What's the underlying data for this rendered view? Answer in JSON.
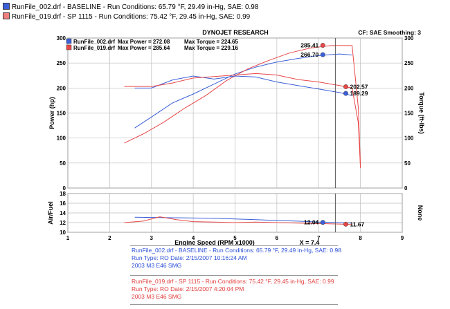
{
  "header": {
    "runs": [
      {
        "text": "RunFile_002.drf - BASELINE  -  Run Conditions: 65.79 °F, 29.49 in-Hg, SAE: 0.98",
        "color": "#3a5fd8"
      },
      {
        "text": "RunFile_019.drf - SP 1115  -  Run Conditions: 75.42 °F, 29.45 in-Hg, SAE: 0.99",
        "color": "#f08080"
      }
    ]
  },
  "chart_data": [
    {
      "type": "line",
      "title": "DYNOJET RESEARCH",
      "top_right_note": "CF: SAE  Smoothing: 3",
      "legend": [
        {
          "run": "RunFile_002.drf",
          "max_power_label": "Max Power =",
          "max_power": "272.08",
          "max_torque_label": "Max Torque =",
          "max_torque": "224.65",
          "color": "#3a5fd8"
        },
        {
          "run": "RunFile_019.drf",
          "max_power_label": "Max Power =",
          "max_power": "285.64",
          "max_torque_label": "Max Torque =",
          "max_torque": "229.16",
          "color": "#e84848"
        }
      ],
      "xlabel": "Engine Speed (RPM x1000)",
      "cursor_label": "X = 7.4",
      "xlim": [
        1,
        9
      ],
      "xticks": [
        "1",
        "2",
        "3",
        "4",
        "5",
        "6",
        "7",
        "8",
        "9"
      ],
      "ylabel_left": "Power (hp)",
      "ylabel_right": "Torque (ft-lbs)",
      "ylim": [
        0,
        300
      ],
      "yticks": [
        "0",
        "50",
        "100",
        "150",
        "200",
        "250",
        "300"
      ],
      "grid": true,
      "cursor_x": 7.4,
      "markers": [
        {
          "label": "285.41",
          "x": 7.1,
          "y": 285.41,
          "color": "#e84848"
        },
        {
          "label": "266.70",
          "x": 7.1,
          "y": 266.7,
          "color": "#3a5fd8"
        },
        {
          "label": "202.57",
          "x": 7.65,
          "y": 202.57,
          "color": "#e84848"
        },
        {
          "label": "189.29",
          "x": 7.65,
          "y": 189.29,
          "color": "#3a5fd8"
        }
      ],
      "series": [
        {
          "name": "RunFile_002.drf Power",
          "color": "#3a5fd8",
          "x": [
            2.6,
            3.0,
            3.5,
            4.0,
            4.5,
            5.0,
            5.5,
            6.0,
            6.5,
            7.0,
            7.5,
            7.8
          ],
          "y": [
            120,
            142,
            170,
            188,
            208,
            228,
            242,
            252,
            259,
            265,
            268,
            266
          ]
        },
        {
          "name": "RunFile_019.drf Power",
          "color": "#e84848",
          "x": [
            2.35,
            2.8,
            3.3,
            3.8,
            4.3,
            4.8,
            5.3,
            5.8,
            6.3,
            6.8,
            7.3,
            7.8,
            7.95,
            8.0
          ],
          "y": [
            90,
            108,
            132,
            160,
            185,
            215,
            238,
            255,
            270,
            280,
            285,
            285,
            160,
            45
          ]
        },
        {
          "name": "RunFile_002.drf Torque",
          "color": "#3a5fd8",
          "x": [
            2.6,
            3.0,
            3.5,
            4.0,
            4.5,
            5.0,
            5.5,
            6.0,
            6.5,
            7.0,
            7.5,
            7.8
          ],
          "y": [
            200,
            200,
            216,
            224,
            218,
            224,
            222,
            212,
            205,
            198,
            191,
            185
          ]
        },
        {
          "name": "RunFile_019.drf Torque",
          "color": "#e84848",
          "x": [
            2.35,
            3.0,
            3.5,
            4.0,
            4.5,
            5.0,
            5.5,
            6.0,
            6.5,
            7.0,
            7.5,
            7.8,
            7.95,
            8.0
          ],
          "y": [
            203,
            203,
            210,
            220,
            223,
            226,
            229,
            226,
            217,
            212,
            205,
            200,
            130,
            40
          ]
        }
      ]
    },
    {
      "type": "line",
      "ylabel_left": "Air/Fuel",
      "ylabel_right": "None",
      "xlim": [
        1,
        9
      ],
      "ylim": [
        10,
        18
      ],
      "yticks": [
        "10",
        "12",
        "14",
        "16",
        "18"
      ],
      "grid": true,
      "markers": [
        {
          "label": "12.04",
          "x": 7.1,
          "y": 12.04,
          "color": "#3a5fd8"
        },
        {
          "label": "11.67",
          "x": 7.65,
          "y": 11.67,
          "color": "#e84848"
        }
      ],
      "series": [
        {
          "name": "RunFile_002.drf AFR",
          "color": "#3a5fd8",
          "x": [
            2.6,
            3.5,
            4.5,
            5.5,
            6.5,
            7.0,
            7.5,
            7.8
          ],
          "y": [
            13.1,
            13.0,
            12.9,
            12.6,
            12.3,
            12.1,
            12.0,
            11.9
          ]
        },
        {
          "name": "RunFile_019.drf AFR",
          "color": "#e84848",
          "x": [
            2.35,
            2.8,
            3.2,
            3.6,
            4.0,
            4.5,
            5.0,
            5.5,
            6.0,
            6.5,
            7.0,
            7.5,
            7.8
          ],
          "y": [
            12.0,
            12.3,
            13.2,
            12.6,
            12.2,
            12.1,
            12.0,
            12.1,
            12.0,
            11.9,
            11.8,
            11.7,
            11.6
          ]
        }
      ]
    }
  ],
  "footer": {
    "blue_block": [
      "RunFile_002.drf - BASELINE  -  Run Conditions: 65.79 °F, 29.49 in-Hg, SAE: 0.98",
      "Run Type: RO  Date: 2/15/2007 10:16:24 AM",
      "2003 M3 E46 SMG"
    ],
    "red_block": [
      "RunFile_019.drf - SP 1115  -  Run Conditions: 75.42 °F, 29.45 in-Hg, SAE: 0.99",
      "Run Type: RO  Date: 2/15/2007 4:20:04 PM",
      "2003 M3 E46 SMG"
    ]
  }
}
